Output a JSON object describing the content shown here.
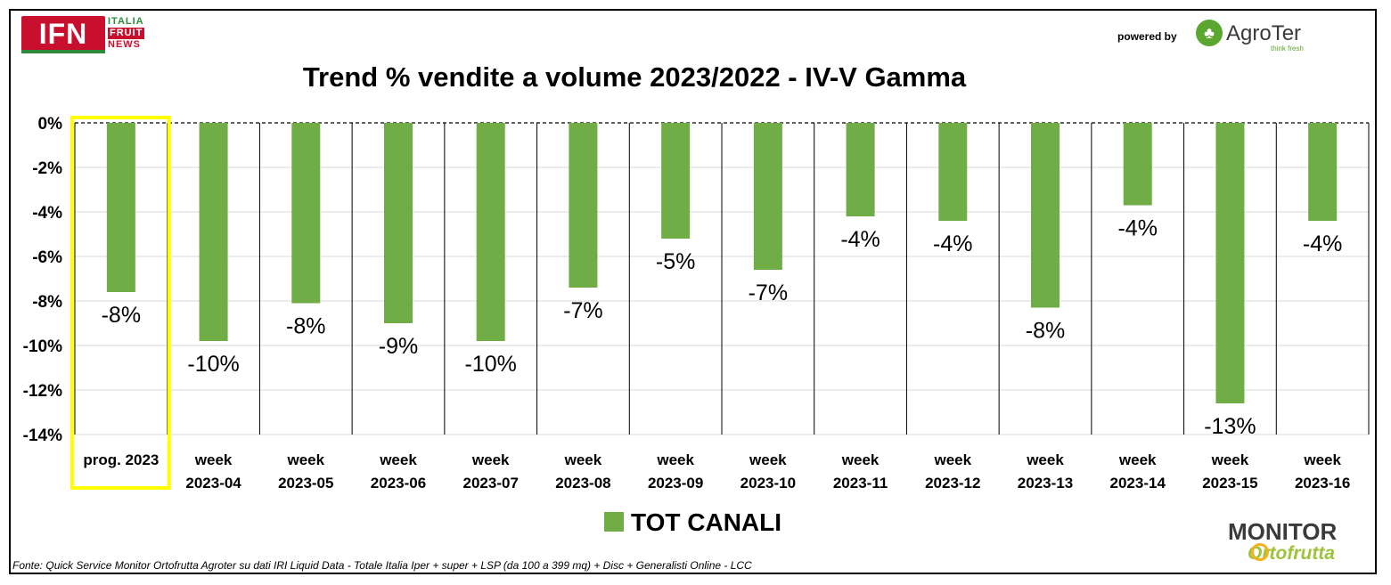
{
  "branding": {
    "ifn_logo_text": "IFN",
    "ifn_words": [
      "ITALIA",
      "FRUIT",
      "NEWS"
    ],
    "powered_by": "powered by",
    "agroter_name": "AgroTer",
    "agroter_tagline": "think fresh",
    "monitor_top": "MONITOR",
    "monitor_bottom": "Ortofrutta"
  },
  "colors": {
    "bar": "#70ad47",
    "highlight_box": "#ffff00",
    "grid": "#d9d9d9"
  },
  "source_note": "Fonte: Quick Service Monitor Ortofrutta Agroter su dati IRI Liquid Data - Totale Italia Iper + super + LSP (da 100 a 399 mq) + Disc + Generalisti Online - LCC",
  "chart_data": {
    "type": "bar",
    "title": "Trend % vendite a volume 2023/2022 - IV-V Gamma",
    "categories": [
      [
        "prog. 2023"
      ],
      [
        "week",
        "2023-04"
      ],
      [
        "week",
        "2023-05"
      ],
      [
        "week",
        "2023-06"
      ],
      [
        "week",
        "2023-07"
      ],
      [
        "week",
        "2023-08"
      ],
      [
        "week",
        "2023-09"
      ],
      [
        "week",
        "2023-10"
      ],
      [
        "week",
        "2023-11"
      ],
      [
        "week",
        "2023-12"
      ],
      [
        "week",
        "2023-13"
      ],
      [
        "week",
        "2023-14"
      ],
      [
        "week",
        "2023-15"
      ],
      [
        "week",
        "2023-16"
      ]
    ],
    "series": [
      {
        "name": "TOT CANALI",
        "values": [
          -7.6,
          -9.8,
          -8.1,
          -9.0,
          -9.8,
          -7.4,
          -5.2,
          -6.6,
          -4.2,
          -4.4,
          -8.3,
          -3.7,
          -12.6,
          -4.4
        ],
        "labels": [
          "-8%",
          "-10%",
          "-8%",
          "-9%",
          "-10%",
          "-7%",
          "-5%",
          "-7%",
          "-4%",
          "-4%",
          "-8%",
          "-4%",
          "-13%",
          "-4%"
        ]
      }
    ],
    "ylim": [
      -14,
      0
    ],
    "yticks": [
      0,
      -2,
      -4,
      -6,
      -8,
      -10,
      -12,
      -14
    ],
    "ytick_labels": [
      "0%",
      "-2%",
      "-4%",
      "-6%",
      "-8%",
      "-10%",
      "-12%",
      "-14%"
    ],
    "grid": true,
    "legend": "bottom-center",
    "highlighted_category_index": 0
  }
}
